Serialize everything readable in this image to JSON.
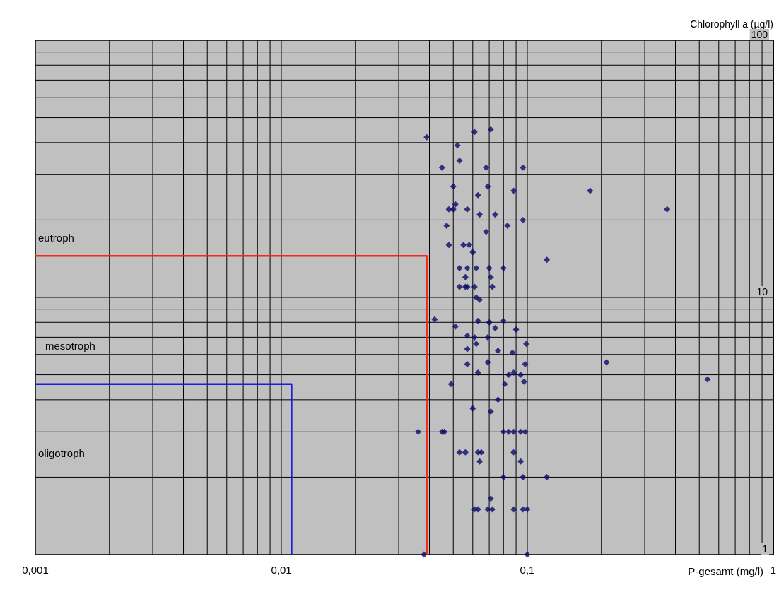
{
  "chart_data": {
    "type": "scatter",
    "xlabel": "P-gesamt (mg/l)",
    "ylabel": "Chlorophyll a (µg/l)",
    "log": "xy",
    "grid": true,
    "xlim": [
      0.001,
      1
    ],
    "ylim": [
      1,
      100
    ],
    "xticks": [
      {
        "value": 0.001,
        "label": "0,001"
      },
      {
        "value": 0.002,
        "label": null
      },
      {
        "value": 0.003,
        "label": null
      },
      {
        "value": 0.004,
        "label": null
      },
      {
        "value": 0.005,
        "label": null
      },
      {
        "value": 0.006,
        "label": null
      },
      {
        "value": 0.007,
        "label": null
      },
      {
        "value": 0.008,
        "label": null
      },
      {
        "value": 0.009,
        "label": null
      },
      {
        "value": 0.01,
        "label": "0,01"
      },
      {
        "value": 0.02,
        "label": null
      },
      {
        "value": 0.03,
        "label": null
      },
      {
        "value": 0.04,
        "label": null
      },
      {
        "value": 0.05,
        "label": null
      },
      {
        "value": 0.06,
        "label": null
      },
      {
        "value": 0.07,
        "label": null
      },
      {
        "value": 0.08,
        "label": null
      },
      {
        "value": 0.09,
        "label": null
      },
      {
        "value": 0.1,
        "label": "0,1"
      },
      {
        "value": 0.2,
        "label": null
      },
      {
        "value": 0.3,
        "label": null
      },
      {
        "value": 0.4,
        "label": null
      },
      {
        "value": 0.5,
        "label": null
      },
      {
        "value": 0.6,
        "label": null
      },
      {
        "value": 0.7,
        "label": null
      },
      {
        "value": 0.8,
        "label": null
      },
      {
        "value": 0.9,
        "label": null
      },
      1
    ],
    "yticks": [
      1,
      {
        "value": 2,
        "label": null
      },
      {
        "value": 3,
        "label": null
      },
      {
        "value": 4,
        "label": null
      },
      {
        "value": 5,
        "label": null
      },
      {
        "value": 6,
        "label": null
      },
      {
        "value": 7,
        "label": null
      },
      {
        "value": 8,
        "label": null
      },
      {
        "value": 9,
        "label": null
      },
      10,
      {
        "value": 20,
        "label": null
      },
      {
        "value": 30,
        "label": null
      },
      {
        "value": 40,
        "label": null
      },
      {
        "value": 50,
        "label": null
      },
      {
        "value": 60,
        "label": null
      },
      {
        "value": 70,
        "label": null
      },
      {
        "value": 80,
        "label": null
      },
      {
        "value": 90,
        "label": null
      },
      100
    ],
    "annotations": [
      "eutroph",
      "mesotroph",
      "oligotroph"
    ],
    "series": [
      {
        "color": "#0b0b6b",
        "marker": "diamond",
        "x": [
          0.039,
          0.061,
          0.071,
          0.052,
          0.045,
          0.053,
          0.068,
          0.096,
          0.05,
          0.069,
          0.063,
          0.088,
          0.18,
          0.37,
          0.05,
          0.051,
          0.048,
          0.057,
          0.064,
          0.074,
          0.096,
          0.047,
          0.068,
          0.083,
          0.058,
          0.055,
          0.048,
          0.06,
          0.12,
          0.053,
          0.057,
          0.062,
          0.07,
          0.08,
          0.056,
          0.071,
          0.072,
          0.053,
          0.056,
          0.057,
          0.061,
          0.062,
          0.064,
          0.042,
          0.051,
          0.063,
          0.07,
          0.08,
          0.057,
          0.061,
          0.069,
          0.074,
          0.062,
          0.09,
          0.099,
          0.057,
          0.076,
          0.087,
          0.098,
          0.069,
          0.057,
          0.088,
          0.094,
          0.084,
          0.097,
          0.21,
          0.54,
          0.049,
          0.063,
          0.081,
          0.06,
          0.071,
          0.076,
          0.036,
          0.045,
          0.046,
          0.08,
          0.084,
          0.088,
          0.094,
          0.098,
          0.053,
          0.056,
          0.063,
          0.065,
          0.088,
          0.064,
          0.094,
          0.08,
          0.096,
          0.12,
          0.071,
          0.061,
          0.063,
          0.069,
          0.072,
          0.088,
          0.096,
          0.1,
          0.038,
          0.1
        ],
        "values": [
          42,
          44,
          45,
          39,
          32,
          34,
          32,
          32,
          27,
          27,
          25,
          26,
          26,
          22,
          22,
          23,
          22,
          22,
          21,
          21,
          20,
          19,
          18,
          19,
          16,
          16,
          16,
          15,
          14,
          13,
          13,
          13,
          13,
          13,
          12,
          12,
          11,
          11,
          11,
          11,
          11,
          10,
          9.8,
          8.2,
          7.7,
          8.1,
          8,
          8.1,
          7.1,
          7,
          7,
          7.6,
          6.6,
          7.5,
          6.6,
          6.3,
          6.2,
          6.1,
          5.5,
          5.6,
          5.5,
          5.1,
          5,
          5,
          4.7,
          5.6,
          4.8,
          4.6,
          5.1,
          4.6,
          3.7,
          3.6,
          4,
          3,
          3,
          3,
          3,
          3,
          3,
          3,
          3,
          2.5,
          2.5,
          2.5,
          2.5,
          2.5,
          2.3,
          2.3,
          2,
          2,
          2,
          1.65,
          1.5,
          1.5,
          1.5,
          1.5,
          1.5,
          1.5,
          1.5,
          1,
          1
        ]
      },
      {
        "type": "line",
        "color": "#ee2a1a",
        "marker": "none",
        "line_style": "solid",
        "x": [
          0.001,
          0.039,
          0.039
        ],
        "values": [
          14.5,
          14.5,
          1
        ]
      },
      {
        "type": "line",
        "color": "#1c1ce0",
        "marker": "none",
        "line_style": "solid",
        "x": [
          0.001,
          0.011,
          0.011
        ],
        "values": [
          4.6,
          4.6,
          1
        ]
      }
    ]
  }
}
